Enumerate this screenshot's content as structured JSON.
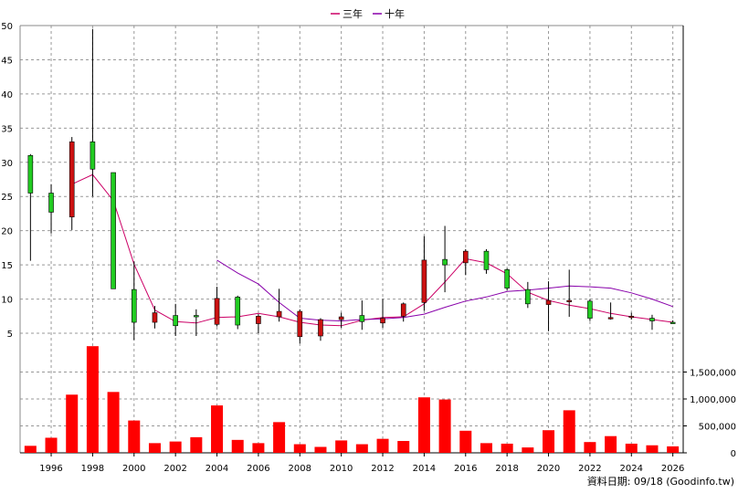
{
  "legend": [
    {
      "label": "三年",
      "color": "#cc0066"
    },
    {
      "label": "十年",
      "color": "#8800aa"
    }
  ],
  "footer": "資料日期: 09/18  (Goodinfo.tw)",
  "chart_data": {
    "type": "candlestick+bar",
    "price_axis": {
      "ylim": [
        3,
        50
      ],
      "ticks": [
        5,
        10,
        15,
        20,
        25,
        30,
        35,
        40,
        45,
        50
      ]
    },
    "volume_axis": {
      "ylim": [
        0,
        2000000
      ],
      "ticks": [
        0,
        500000,
        1000000,
        1500000
      ],
      "tick_labels": [
        "0",
        "500,000",
        "1,000,000",
        "1,500,000"
      ]
    },
    "x_axis": {
      "xlim": [
        1994.5,
        2026.5
      ],
      "ticks": [
        1996,
        1998,
        2000,
        2002,
        2004,
        2006,
        2008,
        2010,
        2012,
        2014,
        2016,
        2018,
        2020,
        2022,
        2024,
        2026
      ]
    },
    "candles": [
      {
        "year": 1995,
        "open": 25.5,
        "high": 31.2,
        "low": 15.6,
        "close": 31.0
      },
      {
        "year": 1996,
        "open": 22.7,
        "high": 26.8,
        "low": 19.6,
        "close": 25.5
      },
      {
        "year": 1997,
        "open": 33.0,
        "high": 33.7,
        "low": 20.1,
        "close": 22.0
      },
      {
        "year": 1998,
        "open": 29.0,
        "high": 49.5,
        "low": 25.0,
        "close": 33.0
      },
      {
        "year": 1999,
        "open": 11.5,
        "high": 28.5,
        "low": 11.5,
        "close": 28.5
      },
      {
        "year": 2000,
        "open": 6.6,
        "high": 15.5,
        "low": 4.0,
        "close": 11.4
      },
      {
        "year": 2001,
        "open": 8.0,
        "high": 9.0,
        "low": 5.7,
        "close": 6.6
      },
      {
        "year": 2002,
        "open": 6.1,
        "high": 9.3,
        "low": 4.6,
        "close": 7.6
      },
      {
        "year": 2003,
        "open": 7.5,
        "high": 8.5,
        "low": 4.6,
        "close": 7.6
      },
      {
        "year": 2004,
        "open": 10.1,
        "high": 11.8,
        "low": 6.0,
        "close": 6.3
      },
      {
        "year": 2005,
        "open": 6.2,
        "high": 10.5,
        "low": 5.6,
        "close": 10.3
      },
      {
        "year": 2006,
        "open": 7.5,
        "high": 7.8,
        "low": 5.0,
        "close": 6.4
      },
      {
        "year": 2007,
        "open": 8.2,
        "high": 11.5,
        "low": 6.7,
        "close": 7.4
      },
      {
        "year": 2008,
        "open": 8.2,
        "high": 8.5,
        "low": 3.5,
        "close": 4.5
      },
      {
        "year": 2009,
        "open": 7.0,
        "high": 7.2,
        "low": 3.9,
        "close": 4.6
      },
      {
        "year": 2010,
        "open": 7.4,
        "high": 8.0,
        "low": 5.8,
        "close": 7.0
      },
      {
        "year": 2011,
        "open": 6.7,
        "high": 9.8,
        "low": 5.5,
        "close": 7.6
      },
      {
        "year": 2012,
        "open": 7.2,
        "high": 10.0,
        "low": 5.8,
        "close": 6.5
      },
      {
        "year": 2013,
        "open": 9.3,
        "high": 9.5,
        "low": 6.7,
        "close": 7.5
      },
      {
        "year": 2014,
        "open": 15.7,
        "high": 19.2,
        "low": 8.3,
        "close": 9.5
      },
      {
        "year": 2015,
        "open": 15.0,
        "high": 20.7,
        "low": 11.0,
        "close": 15.8
      },
      {
        "year": 2016,
        "open": 17.0,
        "high": 17.3,
        "low": 13.5,
        "close": 15.3
      },
      {
        "year": 2017,
        "open": 14.3,
        "high": 17.3,
        "low": 13.7,
        "close": 17.0
      },
      {
        "year": 2018,
        "open": 11.6,
        "high": 14.5,
        "low": 11.3,
        "close": 14.3
      },
      {
        "year": 2019,
        "open": 9.3,
        "high": 12.5,
        "low": 8.7,
        "close": 11.4
      },
      {
        "year": 2020,
        "open": 9.8,
        "high": 12.6,
        "low": 5.3,
        "close": 9.2
      },
      {
        "year": 2021,
        "open": 9.8,
        "high": 14.3,
        "low": 7.4,
        "close": 9.6
      },
      {
        "year": 2022,
        "open": 7.2,
        "high": 10.0,
        "low": 6.8,
        "close": 9.7
      },
      {
        "year": 2023,
        "open": 7.3,
        "high": 9.5,
        "low": 7.0,
        "close": 7.1
      },
      {
        "year": 2024,
        "open": 7.5,
        "high": 8.0,
        "low": 7.0,
        "close": 7.3
      },
      {
        "year": 2025,
        "open": 6.8,
        "high": 7.7,
        "low": 5.5,
        "close": 7.2
      },
      {
        "year": 2026,
        "open": 6.6,
        "high": 6.9,
        "low": 6.4,
        "close": 6.6
      }
    ],
    "volume": [
      {
        "year": 1995,
        "value": 130000
      },
      {
        "year": 1996,
        "value": 280000
      },
      {
        "year": 1997,
        "value": 1080000
      },
      {
        "year": 1998,
        "value": 1980000
      },
      {
        "year": 1999,
        "value": 1130000
      },
      {
        "year": 2000,
        "value": 600000
      },
      {
        "year": 2001,
        "value": 180000
      },
      {
        "year": 2002,
        "value": 210000
      },
      {
        "year": 2003,
        "value": 290000
      },
      {
        "year": 2004,
        "value": 880000
      },
      {
        "year": 2005,
        "value": 240000
      },
      {
        "year": 2006,
        "value": 180000
      },
      {
        "year": 2007,
        "value": 570000
      },
      {
        "year": 2008,
        "value": 160000
      },
      {
        "year": 2009,
        "value": 110000
      },
      {
        "year": 2010,
        "value": 230000
      },
      {
        "year": 2011,
        "value": 160000
      },
      {
        "year": 2012,
        "value": 260000
      },
      {
        "year": 2013,
        "value": 220000
      },
      {
        "year": 2014,
        "value": 1030000
      },
      {
        "year": 2015,
        "value": 990000
      },
      {
        "year": 2016,
        "value": 410000
      },
      {
        "year": 2017,
        "value": 180000
      },
      {
        "year": 2018,
        "value": 170000
      },
      {
        "year": 2019,
        "value": 100000
      },
      {
        "year": 2020,
        "value": 420000
      },
      {
        "year": 2021,
        "value": 790000
      },
      {
        "year": 2022,
        "value": 200000
      },
      {
        "year": 2023,
        "value": 310000
      },
      {
        "year": 2024,
        "value": 170000
      },
      {
        "year": 2025,
        "value": 140000
      },
      {
        "year": 2026,
        "value": 120000
      }
    ],
    "series": [
      {
        "name": "三年",
        "points": [
          {
            "year": 1997,
            "value": 26.8
          },
          {
            "year": 1998,
            "value": 28.2
          },
          {
            "year": 1999,
            "value": 24.4
          },
          {
            "year": 2000,
            "value": 15.1
          },
          {
            "year": 2001,
            "value": 8.4
          },
          {
            "year": 2002,
            "value": 6.7
          },
          {
            "year": 2003,
            "value": 6.5
          },
          {
            "year": 2004,
            "value": 7.3
          },
          {
            "year": 2005,
            "value": 7.4
          },
          {
            "year": 2006,
            "value": 7.9
          },
          {
            "year": 2007,
            "value": 7.4
          },
          {
            "year": 2008,
            "value": 6.6
          },
          {
            "year": 2009,
            "value": 6.2
          },
          {
            "year": 2010,
            "value": 6.1
          },
          {
            "year": 2011,
            "value": 6.9
          },
          {
            "year": 2012,
            "value": 7.3
          },
          {
            "year": 2013,
            "value": 7.4
          },
          {
            "year": 2014,
            "value": 9.3
          },
          {
            "year": 2015,
            "value": 12.5
          },
          {
            "year": 2016,
            "value": 15.9
          },
          {
            "year": 2017,
            "value": 15.3
          },
          {
            "year": 2018,
            "value": 13.7
          },
          {
            "year": 2019,
            "value": 11.0
          },
          {
            "year": 2020,
            "value": 9.8
          },
          {
            "year": 2021,
            "value": 9.1
          },
          {
            "year": 2022,
            "value": 8.6
          },
          {
            "year": 2023,
            "value": 7.9
          },
          {
            "year": 2024,
            "value": 7.4
          },
          {
            "year": 2025,
            "value": 7.0
          },
          {
            "year": 2026,
            "value": 6.6
          }
        ]
      },
      {
        "name": "十年",
        "points": [
          {
            "year": 2004,
            "value": 15.7
          },
          {
            "year": 2005,
            "value": 13.8
          },
          {
            "year": 2006,
            "value": 12.2
          },
          {
            "year": 2007,
            "value": 9.5
          },
          {
            "year": 2008,
            "value": 7.2
          },
          {
            "year": 2009,
            "value": 6.9
          },
          {
            "year": 2010,
            "value": 6.8
          },
          {
            "year": 2011,
            "value": 7.0
          },
          {
            "year": 2012,
            "value": 7.1
          },
          {
            "year": 2013,
            "value": 7.3
          },
          {
            "year": 2014,
            "value": 7.8
          },
          {
            "year": 2015,
            "value": 8.8
          },
          {
            "year": 2016,
            "value": 9.7
          },
          {
            "year": 2017,
            "value": 10.3
          },
          {
            "year": 2018,
            "value": 11.1
          },
          {
            "year": 2019,
            "value": 11.3
          },
          {
            "year": 2020,
            "value": 11.6
          },
          {
            "year": 2021,
            "value": 11.9
          },
          {
            "year": 2022,
            "value": 11.8
          },
          {
            "year": 2023,
            "value": 11.6
          },
          {
            "year": 2024,
            "value": 10.9
          },
          {
            "year": 2025,
            "value": 10.0
          },
          {
            "year": 2026,
            "value": 8.9
          }
        ]
      }
    ],
    "colors": {
      "up": "#22cc22",
      "down": "#cc1111",
      "volume": "#ff0000",
      "grid": "#999999"
    },
    "grid": true,
    "legend_position": "top-center"
  }
}
